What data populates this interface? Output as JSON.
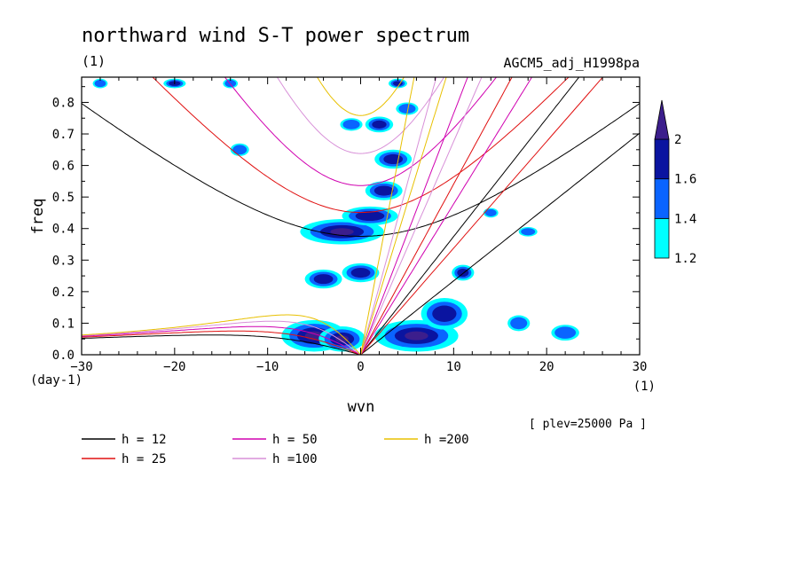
{
  "chart_data": {
    "type": "heatmap",
    "title": "northward wind S-T power spectrum",
    "title_units": "(1)",
    "run_label": "AGCM5_adj_H1998pa",
    "xlabel": "wvn",
    "ylabel": "freq",
    "x_units": "(1)",
    "y_units": "(day-1)",
    "xlim": [
      -30,
      30
    ],
    "ylim": [
      0,
      0.88
    ],
    "x_ticks": [
      -30,
      -20,
      -10,
      0,
      10,
      20,
      30
    ],
    "x_tick_labels": [
      "−30",
      "−20",
      "−10",
      "0",
      "10",
      "20",
      "30"
    ],
    "y_ticks": [
      0,
      0.1,
      0.2,
      0.3,
      0.4,
      0.5,
      0.6,
      0.7,
      0.8
    ],
    "y_tick_labels": [
      "0.0",
      "0.1",
      "0.2",
      "0.3",
      "0.4",
      "0.5",
      "0.6",
      "0.7",
      "0.8"
    ],
    "plev_note": "[ plev=25000 Pa ]",
    "colorbar": {
      "levels": [
        1.2,
        1.4,
        1.6,
        2
      ],
      "level_labels": [
        "1.2",
        "1.4",
        "1.6",
        "2"
      ],
      "colors": [
        "#00ffff",
        "#0a64ff",
        "#0a14a0",
        "#3c1e8c"
      ],
      "extend": "max"
    },
    "dispersion_curves": [
      {
        "label": "h = 12",
        "h": 12,
        "color": "#000000"
      },
      {
        "label": "h = 25",
        "h": 25,
        "color": "#e01010"
      },
      {
        "label": "h = 50",
        "h": 50,
        "color": "#d000b0"
      },
      {
        "label": "h =100",
        "h": 100,
        "color": "#d890d8"
      },
      {
        "label": "h =200",
        "h": 200,
        "color": "#e8c000"
      }
    ],
    "power_blobs": [
      {
        "x": -5,
        "y": 0.06,
        "rx": 3.5,
        "ry": 0.05,
        "level": 3
      },
      {
        "x": -2,
        "y": 0.05,
        "rx": 2.5,
        "ry": 0.04,
        "level": 3
      },
      {
        "x": 6,
        "y": 0.06,
        "rx": 4.5,
        "ry": 0.05,
        "level": 3
      },
      {
        "x": 9,
        "y": 0.13,
        "rx": 2.5,
        "ry": 0.05,
        "level": 2
      },
      {
        "x": 11,
        "y": 0.26,
        "rx": 1.2,
        "ry": 0.025,
        "level": 2
      },
      {
        "x": 17,
        "y": 0.1,
        "rx": 1.2,
        "ry": 0.025,
        "level": 1
      },
      {
        "x": 22,
        "y": 0.07,
        "rx": 1.5,
        "ry": 0.025,
        "level": 1
      },
      {
        "x": -4,
        "y": 0.24,
        "rx": 2,
        "ry": 0.03,
        "level": 2
      },
      {
        "x": 0,
        "y": 0.26,
        "rx": 2,
        "ry": 0.03,
        "level": 2
      },
      {
        "x": -2,
        "y": 0.39,
        "rx": 4.5,
        "ry": 0.04,
        "level": 3
      },
      {
        "x": 1,
        "y": 0.44,
        "rx": 3,
        "ry": 0.03,
        "level": 2
      },
      {
        "x": 2.5,
        "y": 0.52,
        "rx": 2,
        "ry": 0.03,
        "level": 2
      },
      {
        "x": 3.5,
        "y": 0.62,
        "rx": 2,
        "ry": 0.03,
        "level": 2
      },
      {
        "x": 2,
        "y": 0.73,
        "rx": 1.5,
        "ry": 0.025,
        "level": 2
      },
      {
        "x": 5,
        "y": 0.78,
        "rx": 1.2,
        "ry": 0.02,
        "level": 1
      },
      {
        "x": -1,
        "y": 0.73,
        "rx": 1.2,
        "ry": 0.02,
        "level": 1
      },
      {
        "x": -13,
        "y": 0.65,
        "rx": 1,
        "ry": 0.02,
        "level": 1
      },
      {
        "x": -20,
        "y": 0.86,
        "rx": 1.2,
        "ry": 0.015,
        "level": 2
      },
      {
        "x": -14,
        "y": 0.86,
        "rx": 0.8,
        "ry": 0.015,
        "level": 1
      },
      {
        "x": 4,
        "y": 0.86,
        "rx": 1,
        "ry": 0.015,
        "level": 2
      },
      {
        "x": 18,
        "y": 0.39,
        "rx": 1,
        "ry": 0.015,
        "level": 1
      },
      {
        "x": 14,
        "y": 0.45,
        "rx": 0.8,
        "ry": 0.015,
        "level": 1
      },
      {
        "x": -28,
        "y": 0.86,
        "rx": 0.8,
        "ry": 0.015,
        "level": 1
      }
    ]
  }
}
